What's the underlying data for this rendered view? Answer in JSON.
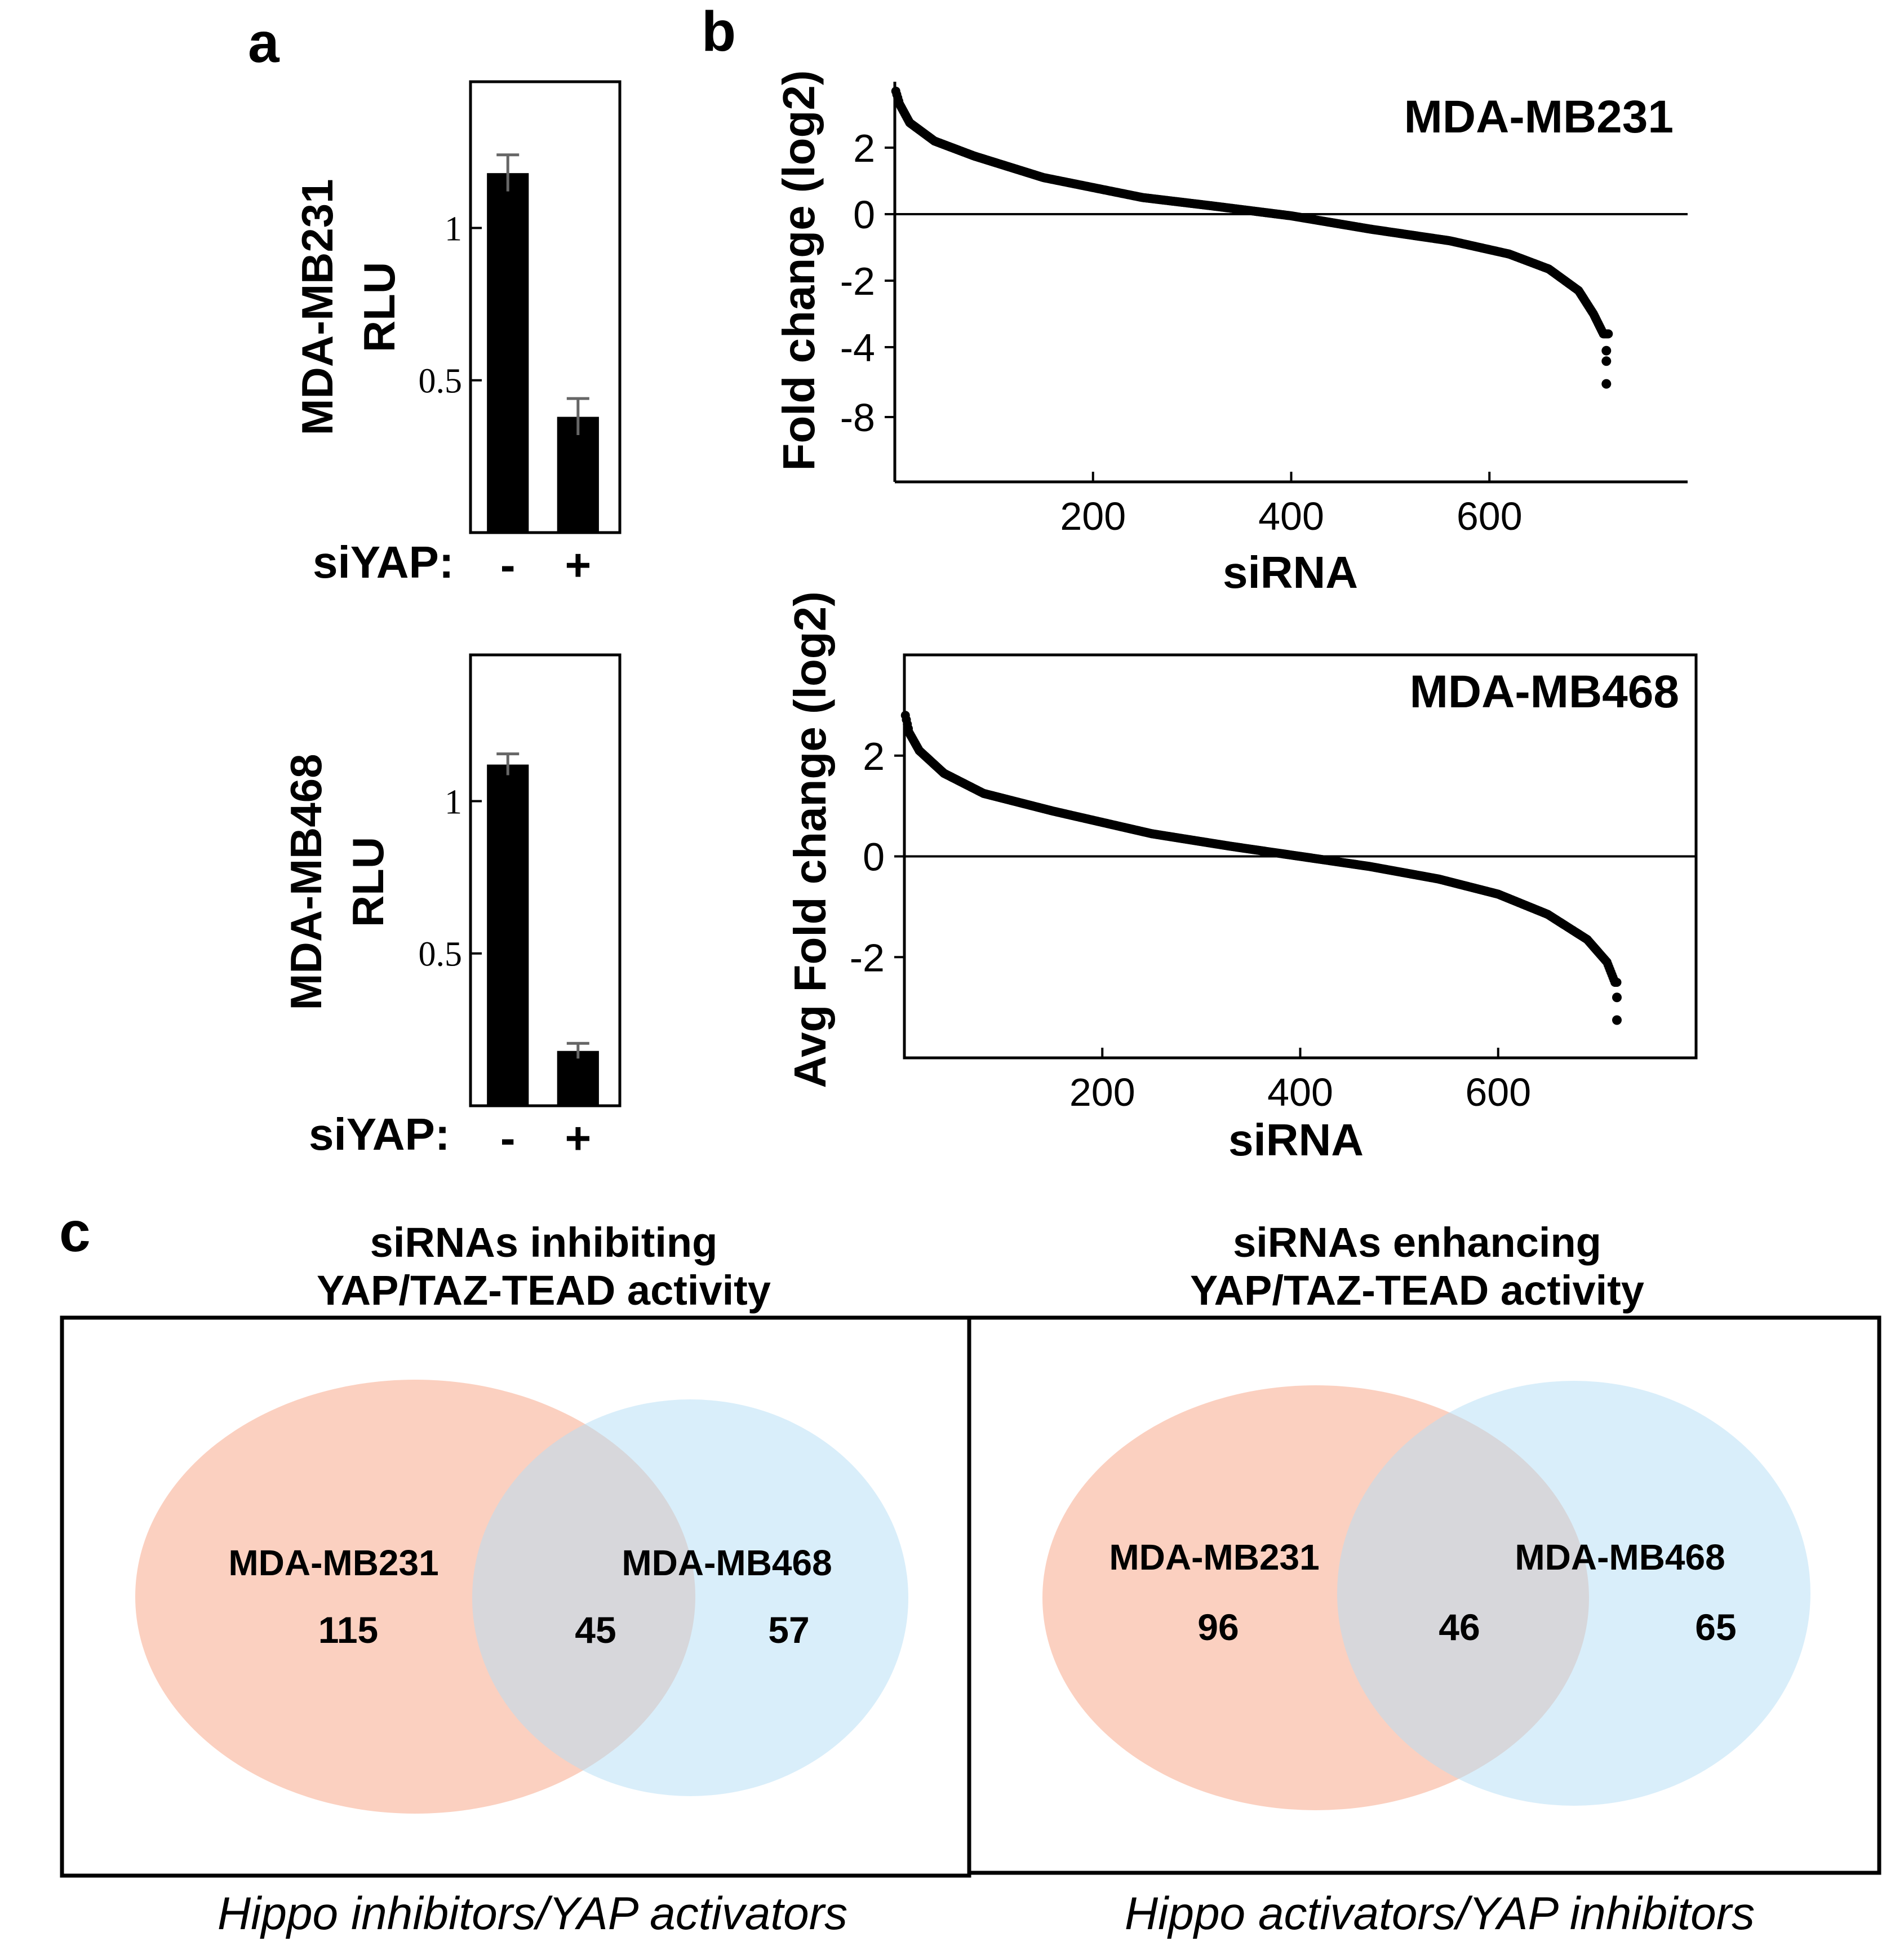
{
  "panel_labels": {
    "a": "a",
    "b": "b",
    "c": "c"
  },
  "colors": {
    "ink": "#000000",
    "error_bar": "#666666",
    "venn_left": "#f7a98c",
    "venn_right": "#b3ddf5"
  },
  "chart_data": [
    {
      "id": "a-top",
      "type": "bar",
      "panel": "a",
      "ylabel": [
        "MDA-MB231",
        "RLU"
      ],
      "categories": [
        "-",
        "+"
      ],
      "xlabel_prefix": "siYAP:",
      "values": [
        1.18,
        0.38
      ],
      "errors": [
        0.06,
        0.06
      ],
      "yticks": [
        0.5,
        1
      ],
      "ytick_labels": [
        "0.5",
        "1"
      ],
      "ylim": [
        0,
        1.48
      ]
    },
    {
      "id": "a-bottom",
      "type": "bar",
      "panel": "a",
      "ylabel": [
        "MDA-MB468",
        "RLU"
      ],
      "categories": [
        "-",
        "+"
      ],
      "xlabel_prefix": "siYAP:",
      "values": [
        1.12,
        0.18
      ],
      "errors": [
        0.035,
        0.025
      ],
      "yticks": [
        0.5,
        1
      ],
      "ytick_labels": [
        "0.5",
        "1"
      ],
      "ylim": [
        0,
        1.48
      ]
    },
    {
      "id": "b-top",
      "type": "scatter",
      "panel": "b",
      "title": "MDA-MB231",
      "xlabel": "siRNA",
      "ylabel": "Fold change (log2)",
      "xticks": [
        200,
        400,
        600
      ],
      "xtick_labels": [
        "200",
        "400",
        "600"
      ],
      "yticks": [
        2,
        0,
        -2,
        -4,
        -8
      ],
      "ytick_labels": [
        "2",
        "0",
        "-2",
        "-4",
        "-8"
      ],
      "xlim": [
        0,
        800
      ],
      "n_points": 720,
      "curve_anchors": [
        [
          1,
          3.7
        ],
        [
          5,
          3.3
        ],
        [
          15,
          2.75
        ],
        [
          40,
          2.2
        ],
        [
          80,
          1.75
        ],
        [
          150,
          1.1
        ],
        [
          250,
          0.5
        ],
        [
          320,
          0.25
        ],
        [
          400,
          -0.05
        ],
        [
          480,
          -0.45
        ],
        [
          560,
          -0.8
        ],
        [
          620,
          -1.2
        ],
        [
          660,
          -1.65
        ],
        [
          690,
          -2.3
        ],
        [
          705,
          -3.0
        ],
        [
          715,
          -3.6
        ]
      ],
      "outliers": [
        [
          718,
          -4.2
        ],
        [
          718,
          -4.8
        ],
        [
          718,
          -6.1
        ]
      ]
    },
    {
      "id": "b-bottom",
      "type": "scatter",
      "panel": "b",
      "title": "MDA-MB468",
      "xlabel": "siRNA",
      "ylabel": "Avg Fold change (log2)",
      "xticks": [
        200,
        400,
        600
      ],
      "xtick_labels": [
        "200",
        "400",
        "600"
      ],
      "yticks": [
        2,
        0,
        -2
      ],
      "ytick_labels": [
        "2",
        "0",
        "-2"
      ],
      "xlim": [
        0,
        800
      ],
      "ylim": [
        -4,
        4
      ],
      "n_points": 720,
      "curve_anchors": [
        [
          1,
          2.8
        ],
        [
          5,
          2.45
        ],
        [
          15,
          2.1
        ],
        [
          40,
          1.65
        ],
        [
          80,
          1.25
        ],
        [
          150,
          0.9
        ],
        [
          250,
          0.45
        ],
        [
          330,
          0.2
        ],
        [
          400,
          0.0
        ],
        [
          470,
          -0.2
        ],
        [
          540,
          -0.45
        ],
        [
          600,
          -0.75
        ],
        [
          650,
          -1.15
        ],
        [
          690,
          -1.65
        ],
        [
          710,
          -2.1
        ],
        [
          718,
          -2.5
        ]
      ],
      "outliers": [
        [
          720,
          -2.8
        ],
        [
          720,
          -3.25
        ]
      ]
    }
  ],
  "venn": {
    "left": {
      "title_line1": "siRNAs inhibiting",
      "title_line2": "YAP/TAZ-TEAD activity",
      "set_a_label": "MDA-MB231",
      "set_b_label": "MDA-MB468",
      "only_a": "115",
      "both": "45",
      "only_b": "57",
      "caption": "Hippo inhibitors/YAP activators"
    },
    "right": {
      "title_line1": "siRNAs enhancing",
      "title_line2": "YAP/TAZ-TEAD activity",
      "set_a_label": "MDA-MB231",
      "set_b_label": "MDA-MB468",
      "only_a": "96",
      "both": "46",
      "only_b": "65",
      "caption": "Hippo activators/YAP inhibitors"
    }
  }
}
